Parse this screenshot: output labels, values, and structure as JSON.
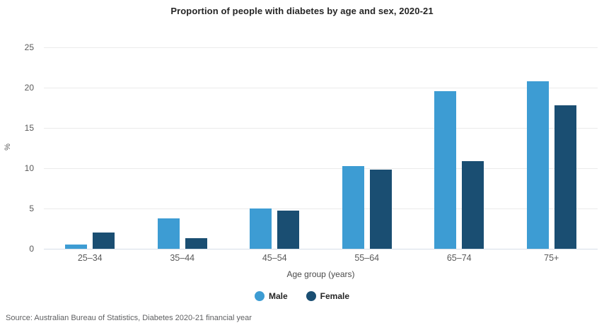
{
  "title": "Proportion of people with diabetes by age and sex, 2020-21",
  "source": "Source: Australian Bureau of Statistics, Diabetes 2020-21 financial year",
  "colors": {
    "male": "#3d9cd3",
    "female": "#1a4e72",
    "gridline": "#ebebeb",
    "baseline": "#d6dfe8"
  },
  "chart_data": {
    "type": "bar",
    "title": "Proportion of people with diabetes by age and sex, 2020-21",
    "categories": [
      "25–34",
      "35–44",
      "45–54",
      "55–64",
      "65–74",
      "75+"
    ],
    "series": [
      {
        "name": "Male",
        "color": "#3d9cd3",
        "values": [
          0.5,
          3.8,
          5.0,
          10.3,
          19.6,
          20.8
        ]
      },
      {
        "name": "Female",
        "color": "#1a4e72",
        "values": [
          2.0,
          1.3,
          4.7,
          9.8,
          10.9,
          17.8
        ]
      }
    ],
    "xlabel": "Age group (years)",
    "ylabel": "%",
    "ylim": [
      0,
      25
    ],
    "yticks": [
      0,
      5,
      10,
      15,
      20,
      25
    ],
    "grid": true,
    "legend_position": "bottom-center"
  }
}
